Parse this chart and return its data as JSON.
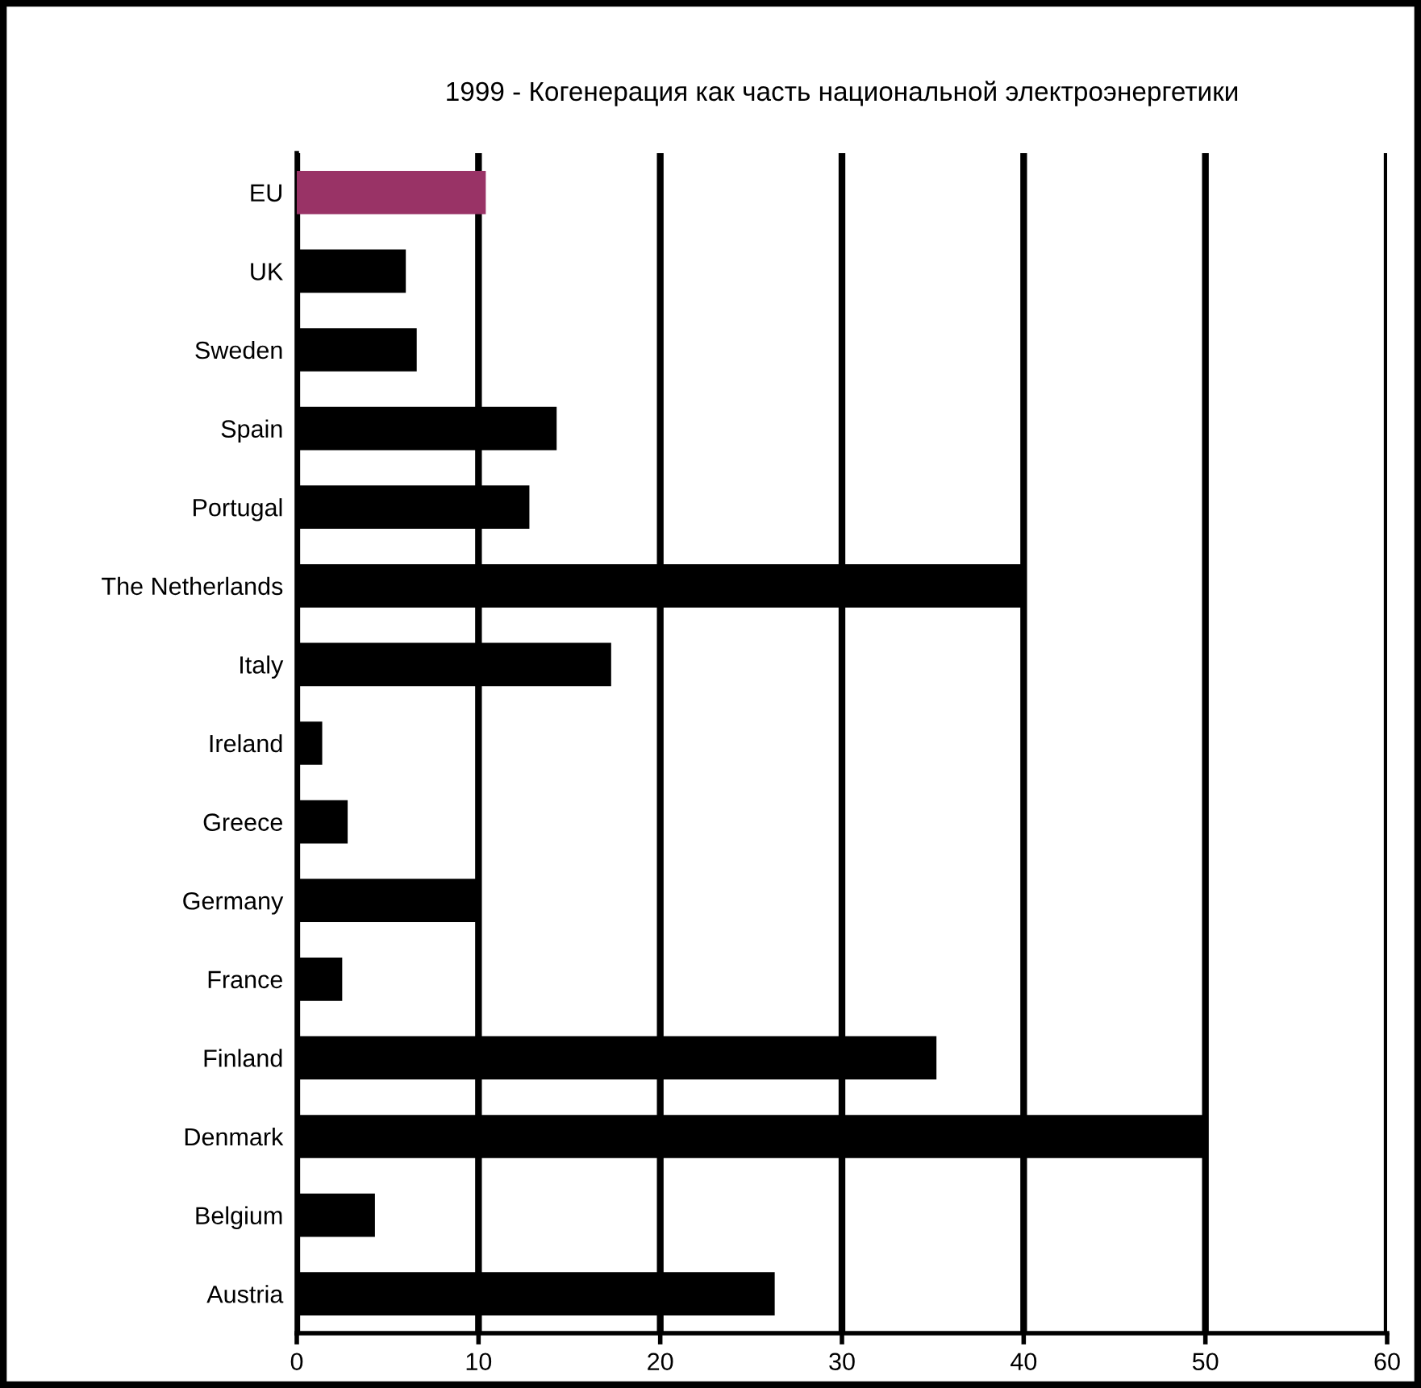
{
  "chart_data": {
    "type": "bar",
    "orientation": "horizontal",
    "title": "1999 - Когенерация как часть национальной электроэнергетики",
    "categories": [
      "EU",
      "UK",
      "Sweden",
      "Spain",
      "Portugal",
      "The Netherlands",
      "Italy",
      "Ireland",
      "Greece",
      "Germany",
      "France",
      "Finland",
      "Denmark",
      "Belgium",
      "Austria"
    ],
    "values": [
      10.4,
      6.0,
      6.6,
      14.3,
      12.8,
      40,
      17.3,
      1.4,
      2.8,
      10,
      2.5,
      35.2,
      50,
      4.3,
      26.3
    ],
    "colors": [
      "#993366",
      "#000000",
      "#000000",
      "#000000",
      "#000000",
      "#000000",
      "#000000",
      "#000000",
      "#000000",
      "#000000",
      "#000000",
      "#000000",
      "#000000",
      "#000000",
      "#000000"
    ],
    "xlim": [
      0,
      60
    ],
    "xticks": [
      0,
      10,
      20,
      30,
      40,
      50,
      60
    ],
    "grid": "x"
  }
}
